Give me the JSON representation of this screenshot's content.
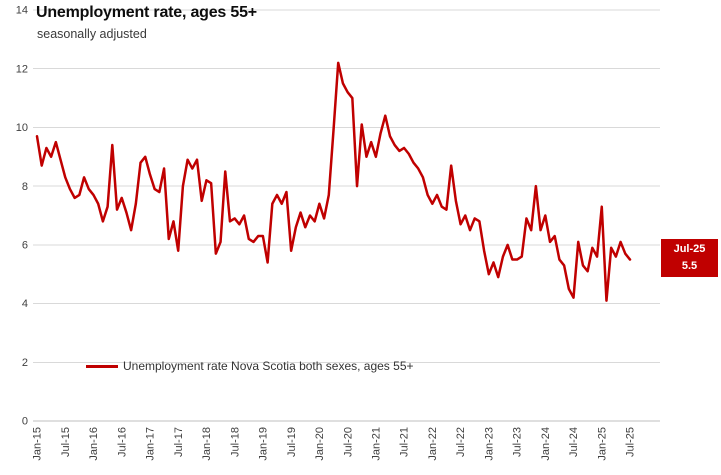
{
  "chart_data": {
    "type": "line",
    "title": "Unemployment rate, ages 55+",
    "subtitle": "seasonally adjusted",
    "legend": "Unemployment rate Nova Scotia both sexes, ages 55+",
    "frequency": "monthly",
    "start_period": "Jan-15",
    "end_period": "Jul-25",
    "x_tick_labels": [
      "Jan-15",
      "Jul-15",
      "Jan-16",
      "Jul-16",
      "Jan-17",
      "Jul-17",
      "Jan-18",
      "Jul-18",
      "Jan-19",
      "Jul-19",
      "Jan-20",
      "Jul-20",
      "Jan-21",
      "Jul-21",
      "Jan-22",
      "Jul-22",
      "Jan-23",
      "Jul-23",
      "Jan-24",
      "Jul-24",
      "Jan-25",
      "Jul-25"
    ],
    "values": [
      9.7,
      8.7,
      9.3,
      9.0,
      9.5,
      8.9,
      8.3,
      7.9,
      7.6,
      7.7,
      8.3,
      7.9,
      7.7,
      7.4,
      6.8,
      7.3,
      9.4,
      7.2,
      7.6,
      7.1,
      6.5,
      7.4,
      8.8,
      9.0,
      8.4,
      7.9,
      7.8,
      8.6,
      6.2,
      6.8,
      5.8,
      8.0,
      8.9,
      8.6,
      8.9,
      7.5,
      8.2,
      8.1,
      5.7,
      6.1,
      8.5,
      6.8,
      6.9,
      6.7,
      7.0,
      6.2,
      6.1,
      6.3,
      6.3,
      5.4,
      7.4,
      7.7,
      7.4,
      7.8,
      5.8,
      6.6,
      7.1,
      6.6,
      7.0,
      6.8,
      7.4,
      6.9,
      7.7,
      9.9,
      12.2,
      11.5,
      11.2,
      11.0,
      8.0,
      10.1,
      9.0,
      9.5,
      9.0,
      9.8,
      10.4,
      9.7,
      9.4,
      9.2,
      9.3,
      9.1,
      8.8,
      8.6,
      8.3,
      7.7,
      7.4,
      7.7,
      7.3,
      7.2,
      8.7,
      7.5,
      6.7,
      7.0,
      6.5,
      6.9,
      6.8,
      5.8,
      5.0,
      5.4,
      4.9,
      5.6,
      6.0,
      5.5,
      5.5,
      5.6,
      6.9,
      6.5,
      8.0,
      6.5,
      7.0,
      6.1,
      6.3,
      5.5,
      5.3,
      4.5,
      4.2,
      6.1,
      5.3,
      5.1,
      5.9,
      5.6,
      7.3,
      4.1,
      5.9,
      5.6,
      6.1,
      5.7,
      5.5
    ],
    "ylim": [
      0,
      14
    ],
    "y_ticks": [
      0,
      2,
      4,
      6,
      8,
      10,
      12,
      14
    ],
    "annotation": {
      "label": "Jul-25",
      "value": "5.5"
    },
    "colors": {
      "line": "#C00000",
      "annotation_bg": "#C00000",
      "annotation_text": "#FFFFFF",
      "gridline": "#D9D9D9",
      "axis_line": "#BFBFBF",
      "tick_text": "#404040"
    }
  }
}
